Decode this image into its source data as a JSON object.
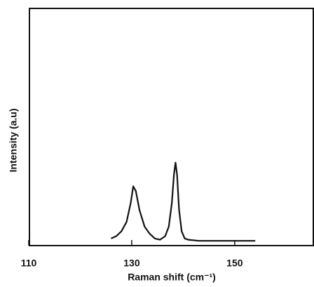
{
  "chart_data": {
    "type": "line",
    "x_label": "Raman shift (cm⁻¹)",
    "y_label": "Intensity (a.u)",
    "color": "#111111",
    "x": [
      126,
      127,
      128,
      129,
      129.8,
      130.3,
      130.8,
      131.5,
      132.5,
      133.5,
      134.5,
      135.5,
      136.5,
      137.2,
      137.8,
      138.2,
      138.5,
      138.8,
      139.2,
      139.7,
      140.3,
      141,
      143,
      146,
      150,
      154
    ],
    "values": [
      3,
      4,
      6,
      10,
      18,
      25,
      23,
      15,
      8,
      5,
      3,
      2.5,
      4,
      8,
      18,
      30,
      35,
      30,
      15,
      6,
      3,
      2.5,
      2,
      2,
      2,
      2
    ],
    "xlim": [
      110,
      165.4
    ],
    "ylim": [
      0,
      100
    ],
    "xticks": [
      110,
      130,
      150
    ]
  }
}
